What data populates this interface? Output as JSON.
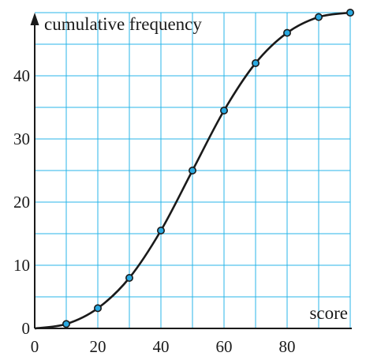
{
  "chart_data": {
    "type": "line",
    "xlabel": "score",
    "ylabel": "cumulative frequency",
    "xlim": [
      0,
      100
    ],
    "ylim": [
      0,
      50
    ],
    "x_grid_step": 10,
    "y_grid_step": 5,
    "x_ticks": [
      0,
      20,
      40,
      60,
      80
    ],
    "y_ticks": [
      0,
      10,
      20,
      30,
      40
    ],
    "x_tick_labels": [
      "0",
      "20",
      "40",
      "60",
      "80"
    ],
    "y_tick_labels": [
      "0",
      "10",
      "20",
      "30",
      "40"
    ],
    "grid": true,
    "series": [
      {
        "x": [
          0,
          10,
          20,
          30,
          40,
          50,
          60,
          70,
          80,
          90,
          100
        ],
        "y": [
          0,
          0.7,
          3.2,
          8,
          15.5,
          25,
          34.5,
          42,
          46.8,
          49.3,
          50
        ],
        "marked_x": [
          10,
          20,
          30,
          40,
          50,
          60,
          70,
          80,
          90,
          100
        ]
      }
    ],
    "colors": {
      "grid": "#29b6e8",
      "point_fill": "#29a9e1",
      "ink": "#1a1a1a"
    }
  }
}
